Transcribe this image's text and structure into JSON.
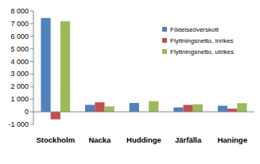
{
  "chart_data": {
    "type": "bar",
    "categories": [
      "Stockholm",
      "Nacka",
      "Huddinge",
      "Järfälla",
      "Haninge"
    ],
    "series": [
      {
        "name": "Födelseöverskott",
        "color": "#4f81bd",
        "values": [
          7450,
          550,
          700,
          350,
          480
        ]
      },
      {
        "name": "Flyttningsnetto, inrikes",
        "color": "#c0504d",
        "values": [
          -600,
          750,
          0,
          550,
          250
        ]
      },
      {
        "name": "Flyttningsnetto, utrikes",
        "color": "#9bbb59",
        "values": [
          7200,
          430,
          850,
          600,
          680
        ]
      }
    ],
    "ylim": [
      -1000,
      8000
    ],
    "yticks": [
      {
        "value": -1000,
        "label": "-1 000"
      },
      0,
      {
        "value": 1000,
        "label": "1 000"
      },
      {
        "value": 2000,
        "label": "2 000"
      },
      {
        "value": 3000,
        "label": "3 000"
      },
      {
        "value": 4000,
        "label": "4 000"
      },
      {
        "value": 5000,
        "label": "5 000"
      },
      {
        "value": 6000,
        "label": "6 000"
      },
      {
        "value": 7000,
        "label": "7 000"
      },
      {
        "value": 8000,
        "label": "8 000"
      }
    ],
    "grid": false,
    "legend": "upper right"
  }
}
